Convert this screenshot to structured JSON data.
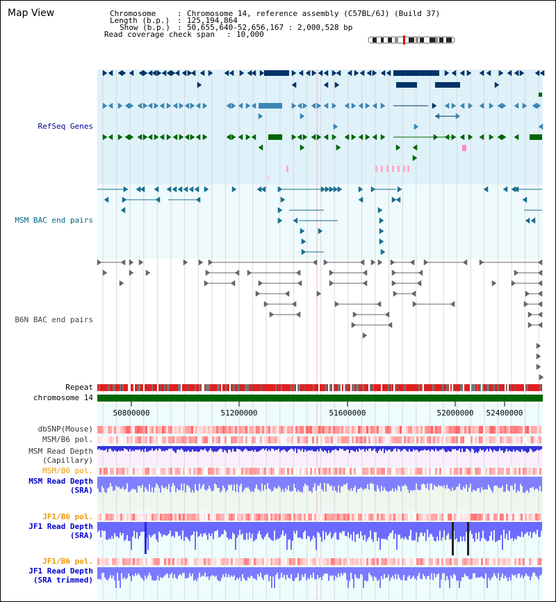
{
  "app": {
    "title": "Map View"
  },
  "header": {
    "chromosome_key": "Chromosome",
    "chromosome_value": "Chromosome 14, reference assembly (C57BL/6J) (Build 37)",
    "length_key": "Length (b.p.)",
    "length_value": "125,194,864",
    "show_key": "Show (b.p.)",
    "show_value": "50,655,640-52,656,167 : 2,000,528 bp",
    "read_key": "Read coverage check span",
    "read_value": "10,000"
  },
  "tracks": {
    "refseq": "RefSeq Genes",
    "msm_bac": "MSM BAC end pairs",
    "b6n_bac": "B6N BAC end pairs",
    "repeat": "Repeat",
    "chromosome": "chromosome 14",
    "dbsnp": "dbSNP(Mouse)",
    "msm_b6_pol_1": "MSM/B6 pol.",
    "msm_depth_cap_1": "MSM Read Depth",
    "msm_depth_cap_2": "(Capillary)",
    "msm_b6_pol_2": "MSM/B6 pol.",
    "msm_depth_sra_1": "MSM Read Depth",
    "msm_depth_sra_2": "(SRA)",
    "jf1_b6_pol_1": "JF1/B6 pol.",
    "jf1_depth_sra_1": "JF1 Read Depth",
    "jf1_depth_sra_2": "(SRA)",
    "jf1_b6_pol_2": "JF1/B6 pol.",
    "jf1_depth_trim_1": "JF1 Read Depth",
    "jf1_depth_trim_2": "(SRA trimmed)"
  },
  "axis": {
    "ticks": [
      "50800000",
      "51200000",
      "51600000",
      "52000000",
      "52400000"
    ]
  },
  "colors": {
    "refseq_bg": "#dff1f9",
    "bac_bg": "#eefafc",
    "gene_dark": "#003366",
    "gene_mid": "#3a87b5",
    "gene_green": "#006600",
    "snp_red": "#e83030",
    "depth_blue": "#3333ee"
  }
}
